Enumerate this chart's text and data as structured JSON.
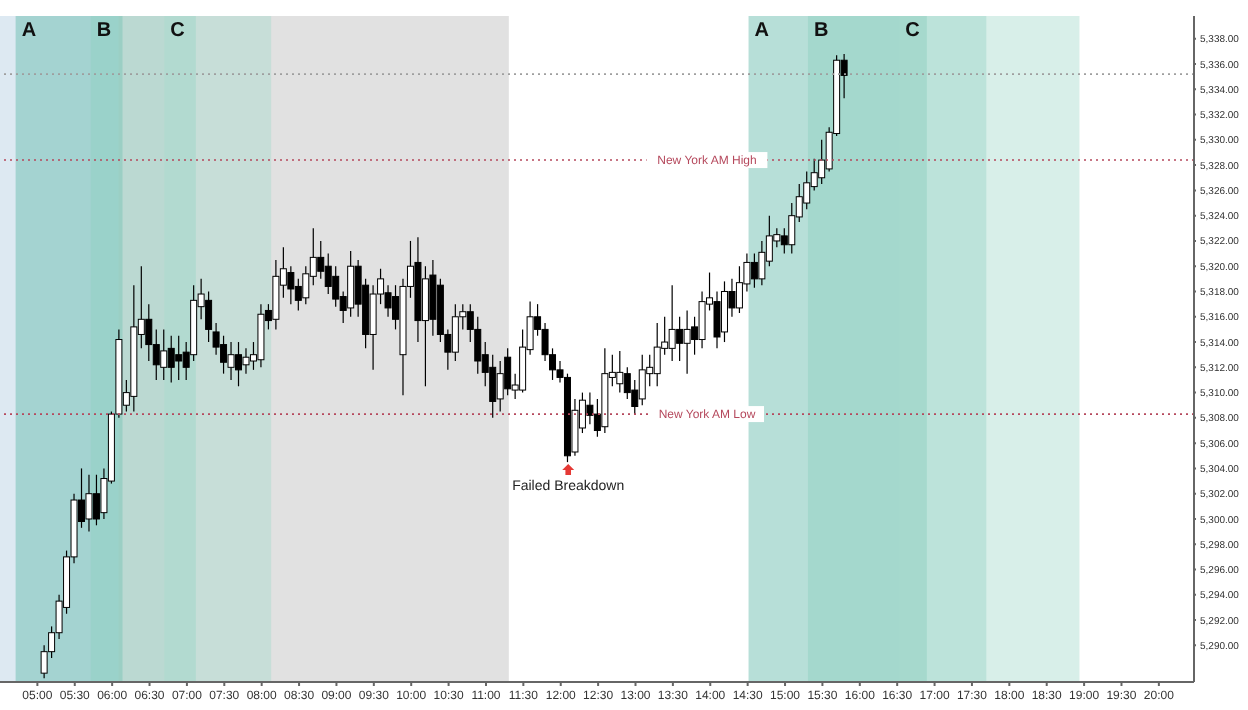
{
  "chart_data": {
    "type": "candlestick",
    "x": [
      5.1,
      5.2,
      5.3,
      5.4,
      5.5,
      5.6,
      5.7,
      5.8,
      5.9,
      6.0,
      6.1,
      6.2,
      6.3,
      6.4,
      6.5,
      6.6,
      6.7,
      6.8,
      6.9,
      7.0,
      7.1,
      7.2,
      7.3,
      7.4,
      7.5,
      7.6,
      7.7,
      7.8,
      7.9,
      8.0,
      8.1,
      8.2,
      8.3,
      8.4,
      8.5,
      8.6,
      8.7,
      8.8,
      8.9,
      9.0,
      9.1,
      9.2,
      9.3,
      9.4,
      9.5,
      9.6,
      9.7,
      9.8,
      9.9,
      10.0,
      10.1,
      10.2,
      10.3,
      10.4,
      10.5,
      10.6,
      10.7,
      10.8,
      10.9,
      11.0,
      11.1,
      11.2,
      11.3,
      11.4,
      11.5,
      11.6,
      11.7,
      11.8,
      11.9,
      12.0,
      12.1,
      12.2,
      12.3,
      12.4,
      12.5,
      12.6,
      12.7,
      12.8,
      12.9,
      13.0,
      13.1,
      13.2,
      13.3,
      13.4,
      13.5,
      13.6,
      13.7,
      13.8,
      13.9,
      14.0,
      14.1,
      14.2,
      14.3,
      14.4,
      14.5,
      14.6,
      14.7,
      14.8,
      14.9,
      15.0,
      15.1,
      15.2,
      15.3,
      15.4,
      15.5,
      15.6,
      15.7,
      15.8
    ],
    "ohlc": [
      [
        5287.8,
        5290,
        5287.4,
        5289.5
      ],
      [
        5289.5,
        5291.5,
        5289,
        5291
      ],
      [
        5291,
        5294,
        5290.5,
        5293.5
      ],
      [
        5293,
        5297.5,
        5292.5,
        5297
      ],
      [
        5297,
        5302,
        5296.5,
        5301.5
      ],
      [
        5301.5,
        5304,
        5299.3,
        5299.8
      ],
      [
        5300,
        5303.5,
        5299,
        5302
      ],
      [
        5302,
        5303.5,
        5299.5,
        5300
      ],
      [
        5300.5,
        5304,
        5300,
        5303.2
      ],
      [
        5303,
        5308.5,
        5302.8,
        5308.3
      ],
      [
        5308.3,
        5315,
        5308,
        5314.2
      ],
      [
        5309,
        5311,
        5308.5,
        5310
      ],
      [
        5309.7,
        5318.5,
        5308.5,
        5315.2
      ],
      [
        5314.6,
        5320,
        5313.5,
        5315.8
      ],
      [
        5315.8,
        5317,
        5312.5,
        5313.8
      ],
      [
        5313.8,
        5315,
        5311,
        5312.2
      ],
      [
        5312,
        5315,
        5311,
        5313.3
      ],
      [
        5313.5,
        5314.5,
        5310.8,
        5312
      ],
      [
        5313,
        5314.5,
        5311,
        5312.5
      ],
      [
        5313.2,
        5314,
        5311,
        5312
      ],
      [
        5313,
        5318.5,
        5312.5,
        5317.3
      ],
      [
        5316.8,
        5319,
        5315.8,
        5317.8
      ],
      [
        5317.3,
        5318,
        5314,
        5315
      ],
      [
        5314.8,
        5315.5,
        5313,
        5313.6
      ],
      [
        5313.8,
        5314.5,
        5311.5,
        5312.4
      ],
      [
        5312,
        5314,
        5311,
        5313
      ],
      [
        5313,
        5314,
        5310.5,
        5311.8
      ],
      [
        5312.2,
        5313.5,
        5311.5,
        5312.8
      ],
      [
        5312.5,
        5314,
        5311.8,
        5313
      ],
      [
        5312.6,
        5317,
        5312,
        5316.2
      ],
      [
        5316.5,
        5317,
        5315,
        5315.7
      ],
      [
        5315.8,
        5320.5,
        5315,
        5319.2
      ],
      [
        5318.5,
        5321.5,
        5317.5,
        5319.8
      ],
      [
        5319.5,
        5320,
        5317,
        5318.2
      ],
      [
        5318.4,
        5319,
        5316.5,
        5317.3
      ],
      [
        5317.5,
        5320,
        5317,
        5319.4
      ],
      [
        5319.2,
        5323,
        5318.5,
        5320.7
      ],
      [
        5320.7,
        5322,
        5319,
        5319.6
      ],
      [
        5320,
        5321,
        5317.8,
        5318.4
      ],
      [
        5319.2,
        5320,
        5316.8,
        5317.4
      ],
      [
        5317.6,
        5318,
        5315.5,
        5316.5
      ],
      [
        5316.7,
        5321.2,
        5316,
        5320
      ],
      [
        5320,
        5320.5,
        5316,
        5317
      ],
      [
        5318.5,
        5319,
        5313.5,
        5314.6
      ],
      [
        5314.6,
        5318.5,
        5311.8,
        5317.8
      ],
      [
        5317.8,
        5319.8,
        5317,
        5319
      ],
      [
        5317.9,
        5318.5,
        5316,
        5316.7
      ],
      [
        5317.6,
        5318.5,
        5315,
        5315.8
      ],
      [
        5313,
        5319,
        5309.8,
        5318.4
      ],
      [
        5318.4,
        5322,
        5317.5,
        5320
      ],
      [
        5320.3,
        5322.3,
        5314,
        5315.7
      ],
      [
        5315.7,
        5320,
        5310.5,
        5319
      ],
      [
        5319.3,
        5320.5,
        5314.5,
        5315.8
      ],
      [
        5318.5,
        5319,
        5314,
        5314.6
      ],
      [
        5314.6,
        5315,
        5311.8,
        5313.2
      ],
      [
        5313.2,
        5317,
        5312.5,
        5316
      ],
      [
        5316,
        5317,
        5315,
        5316.4
      ],
      [
        5316.4,
        5317,
        5314,
        5315
      ],
      [
        5315,
        5316,
        5311.5,
        5312.5
      ],
      [
        5313,
        5314,
        5310.5,
        5311.6
      ],
      [
        5312,
        5313,
        5308,
        5309.3
      ],
      [
        5309.5,
        5312.5,
        5308.5,
        5311.5
      ],
      [
        5312.8,
        5313.5,
        5309.8,
        5310.3
      ],
      [
        5310.2,
        5311.5,
        5309.5,
        5310.6
      ],
      [
        5310.2,
        5315,
        5310,
        5313.6
      ],
      [
        5313.4,
        5317.2,
        5313,
        5316
      ],
      [
        5316,
        5317,
        5314.5,
        5315
      ],
      [
        5315,
        5315.5,
        5312.5,
        5313
      ],
      [
        5313,
        5313.5,
        5311,
        5311.8
      ],
      [
        5311.8,
        5312.5,
        5310.8,
        5311.2
      ],
      [
        5311.2,
        5311.5,
        5304.5,
        5305
      ],
      [
        5305.3,
        5309.5,
        5305,
        5308.6
      ],
      [
        5307.2,
        5310,
        5306.8,
        5309.4
      ],
      [
        5309,
        5310,
        5307.5,
        5308.2
      ],
      [
        5308.3,
        5309.5,
        5306.5,
        5307
      ],
      [
        5307.3,
        5313.5,
        5306.8,
        5311.5
      ],
      [
        5311.2,
        5313,
        5310.5,
        5311.6
      ],
      [
        5310.7,
        5313.3,
        5310,
        5311.6
      ],
      [
        5311.5,
        5312,
        5309.5,
        5310
      ],
      [
        5310.2,
        5311,
        5308.3,
        5308.9
      ],
      [
        5309.5,
        5313,
        5309,
        5311.8
      ],
      [
        5311.5,
        5313,
        5310.5,
        5312
      ],
      [
        5311.5,
        5315.5,
        5310.5,
        5313.6
      ],
      [
        5313.5,
        5316,
        5313,
        5314
      ],
      [
        5313.5,
        5318.5,
        5312.5,
        5315
      ],
      [
        5315,
        5316,
        5312.5,
        5313.9
      ],
      [
        5313.9,
        5316.5,
        5311.5,
        5315
      ],
      [
        5315.2,
        5316,
        5313,
        5314.2
      ],
      [
        5314.2,
        5318,
        5313.5,
        5317.2
      ],
      [
        5317,
        5319.5,
        5316.5,
        5317.5
      ],
      [
        5317.2,
        5318,
        5313.5,
        5314.4
      ],
      [
        5314.8,
        5318.8,
        5314,
        5318
      ],
      [
        5318,
        5319,
        5316,
        5316.7
      ],
      [
        5316.7,
        5320,
        5316.3,
        5318.7
      ],
      [
        5318.6,
        5321,
        5318,
        5320.3
      ],
      [
        5320.3,
        5321,
        5318.3,
        5319
      ],
      [
        5319,
        5322,
        5318.5,
        5321.1
      ],
      [
        5320.4,
        5324,
        5320,
        5322.4
      ],
      [
        5322,
        5323,
        5321.5,
        5322.5
      ],
      [
        5322.4,
        5323,
        5321,
        5321.7
      ],
      [
        5321.7,
        5325,
        5321,
        5324
      ],
      [
        5323.9,
        5326.5,
        5323.5,
        5325.5
      ],
      [
        5325,
        5327.5,
        5324.5,
        5326.6
      ],
      [
        5326.3,
        5328.5,
        5326,
        5327.4
      ],
      [
        5327,
        5330,
        5326.5,
        5328.4
      ],
      [
        5327.7,
        5331,
        5327.5,
        5330.6
      ],
      [
        5330.5,
        5336.7,
        5330.3,
        5336.3
      ],
      [
        5336.3,
        5336.8,
        5333.3,
        5335.1
      ]
    ],
    "xlim": [
      4.5,
      20.47
    ],
    "xticks": [
      {
        "value": 5,
        "label": "05:00"
      },
      {
        "value": 5.5,
        "label": "05:30"
      },
      {
        "value": 6,
        "label": "06:00"
      },
      {
        "value": 6.5,
        "label": "06:30"
      },
      {
        "value": 7,
        "label": "07:00"
      },
      {
        "value": 7.5,
        "label": "07:30"
      },
      {
        "value": 8,
        "label": "08:00"
      },
      {
        "value": 8.5,
        "label": "08:30"
      },
      {
        "value": 9,
        "label": "09:00"
      },
      {
        "value": 9.5,
        "label": "09:30"
      },
      {
        "value": 10,
        "label": "10:00"
      },
      {
        "value": 10.5,
        "label": "10:30"
      },
      {
        "value": 11,
        "label": "11:00"
      },
      {
        "value": 11.5,
        "label": "11:30"
      },
      {
        "value": 12,
        "label": "12:00"
      },
      {
        "value": 12.5,
        "label": "12:30"
      },
      {
        "value": 13,
        "label": "13:00"
      },
      {
        "value": 13.5,
        "label": "13:30"
      },
      {
        "value": 14,
        "label": "14:00"
      },
      {
        "value": 14.5,
        "label": "14:30"
      },
      {
        "value": 15,
        "label": "15:00"
      },
      {
        "value": 15.5,
        "label": "15:30"
      },
      {
        "value": 16,
        "label": "16:00"
      },
      {
        "value": 16.5,
        "label": "16:30"
      },
      {
        "value": 17,
        "label": "17:00"
      },
      {
        "value": 17.5,
        "label": "17:30"
      },
      {
        "value": 18,
        "label": "18:00"
      },
      {
        "value": 18.5,
        "label": "18:30"
      },
      {
        "value": 19,
        "label": "19:00"
      },
      {
        "value": 19.5,
        "label": "19:30"
      },
      {
        "value": 20,
        "label": "20:00"
      }
    ],
    "ylim": [
      5287.1,
      5339.8
    ],
    "yticks": [
      {
        "value": 5290,
        "label": "5,290.00"
      },
      {
        "value": 5292,
        "label": "5,292.00"
      },
      {
        "value": 5294,
        "label": "5,294.00"
      },
      {
        "value": 5296,
        "label": "5,296.00"
      },
      {
        "value": 5298,
        "label": "5,298.00"
      },
      {
        "value": 5300,
        "label": "5,300.00"
      },
      {
        "value": 5302,
        "label": "5,302.00"
      },
      {
        "value": 5304,
        "label": "5,304.00"
      },
      {
        "value": 5306,
        "label": "5,306.00"
      },
      {
        "value": 5308,
        "label": "5,308.00"
      },
      {
        "value": 5310,
        "label": "5,310.00"
      },
      {
        "value": 5312,
        "label": "5,312.00"
      },
      {
        "value": 5314,
        "label": "5,314.00"
      },
      {
        "value": 5316,
        "label": "5,316.00"
      },
      {
        "value": 5318,
        "label": "5,318.00"
      },
      {
        "value": 5320,
        "label": "5,320.00"
      },
      {
        "value": 5322,
        "label": "5,322.00"
      },
      {
        "value": 5324,
        "label": "5,324.00"
      },
      {
        "value": 5326,
        "label": "5,326.00"
      },
      {
        "value": 5328,
        "label": "5,328.00"
      },
      {
        "value": 5330,
        "label": "5,330.00"
      },
      {
        "value": 5332,
        "label": "5,332.00"
      },
      {
        "value": 5334,
        "label": "5,334.00"
      },
      {
        "value": 5336,
        "label": "5,336.00"
      },
      {
        "value": 5338,
        "label": "5,338.00"
      }
    ],
    "ref_lines": [
      {
        "axis": "y",
        "value": 5328.4,
        "label": "New York AM High",
        "color": "#b5485c",
        "line_style": "dotted"
      },
      {
        "axis": "y",
        "value": 5308.3,
        "label": "New York AM Low",
        "color": "#b5485c",
        "line_style": "dotted"
      },
      {
        "axis": "y",
        "value": 5335.2,
        "color": "#9e9e9e",
        "line_style": "dotted"
      }
    ],
    "bands": [
      {
        "axis": "x",
        "from": 4.5,
        "to": 6.086,
        "color": "#b4cfe3"
      },
      {
        "axis": "x",
        "from": 6.086,
        "to": 11.306,
        "color": "#bdbdbd"
      },
      {
        "axis": "x",
        "from": 4.709,
        "to": 6.139,
        "label": "A",
        "color": "#5fb8a8"
      },
      {
        "axis": "x",
        "from": 5.715,
        "to": 7.12,
        "label": "B",
        "color": "#8fd0c2"
      },
      {
        "axis": "x",
        "from": 6.696,
        "to": 8.127,
        "label": "C",
        "color": "#a8dccf"
      },
      {
        "axis": "x",
        "from": 14.512,
        "to": 16.897,
        "label": "A",
        "color": "#5fb8a8"
      },
      {
        "axis": "x",
        "from": 15.307,
        "to": 17.692,
        "label": "B",
        "color": "#8fd0c2"
      },
      {
        "axis": "x",
        "from": 16.526,
        "to": 18.938,
        "label": "C",
        "color": "#a8dccf"
      }
    ],
    "annotations": [
      {
        "text": "Failed Breakdown",
        "x": 12.1,
        "y": 5304.5
      }
    ]
  }
}
